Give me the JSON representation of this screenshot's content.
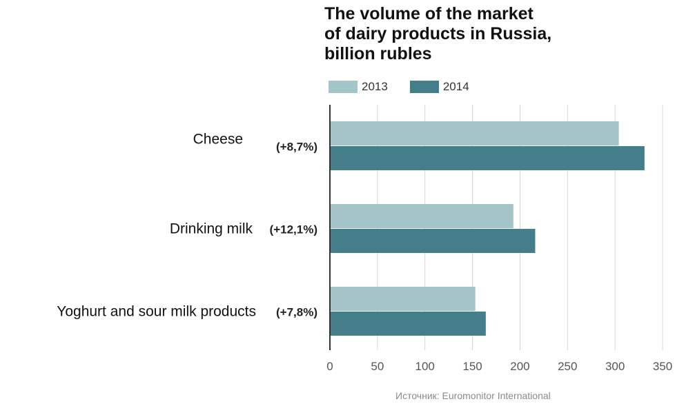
{
  "chart_data": {
    "type": "bar",
    "orientation": "horizontal",
    "title": [
      "The volume of the market",
      "of dairy products in Russia,",
      "billion rubles"
    ],
    "categories": [
      "Cheese",
      "Drinking milk",
      "Yoghurt and sour milk products"
    ],
    "annotations": [
      "(+8,7%)",
      "(+12,1%)",
      "(+7,8%)"
    ],
    "series": [
      {
        "name": "2013",
        "color": "#a3c4c8",
        "values": [
          304,
          193,
          153
        ]
      },
      {
        "name": "2014",
        "color": "#457e8b",
        "values": [
          331,
          216,
          164
        ]
      }
    ],
    "xlim": [
      0,
      350
    ],
    "xticks": [
      "0",
      "50",
      "100",
      "150",
      "200",
      "250",
      "300",
      "350"
    ],
    "grid": true,
    "legend": "top"
  },
  "source": "Источник: Euromonitor International"
}
